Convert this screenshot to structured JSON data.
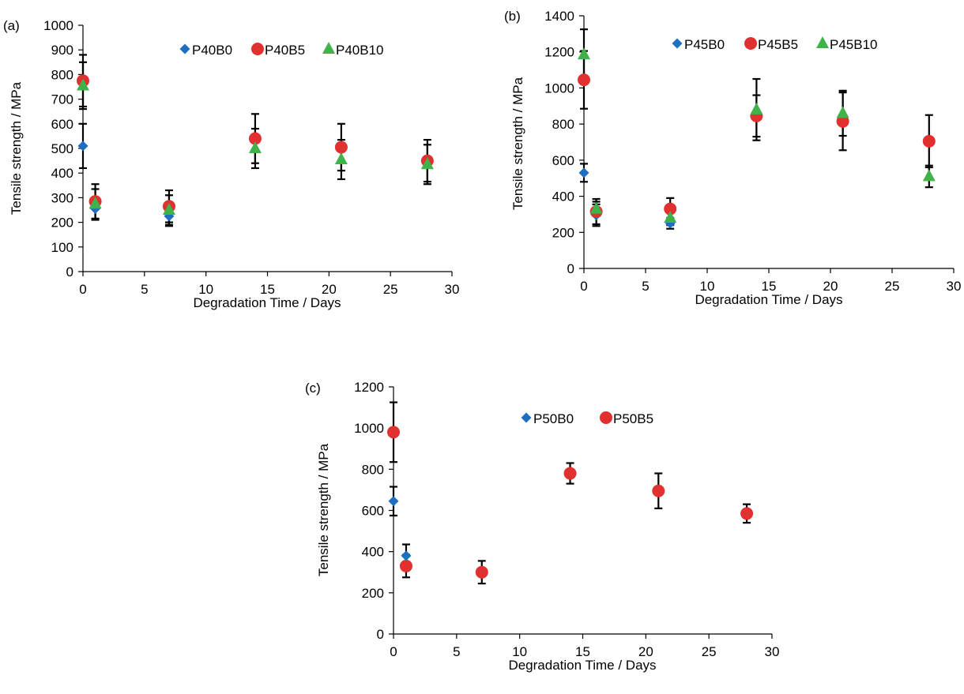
{
  "colors": {
    "diamond": "#1f6fc0",
    "circle": "#e0302f",
    "triangle": "#3fb24a",
    "axis": "#000000",
    "error_bar": "#000000"
  },
  "chart_data": [
    {
      "type": "scatter",
      "panel_label": "(a)",
      "xlabel": "Degradation Time / Days",
      "ylabel": "Tensile strength / MPa",
      "xlim": [
        0,
        30
      ],
      "ylim": [
        0,
        1000
      ],
      "x_ticks": [
        "0",
        "5",
        "10",
        "15",
        "20",
        "25",
        "30"
      ],
      "y_ticks": [
        "0",
        "100",
        "200",
        "300",
        "400",
        "500",
        "600",
        "700",
        "800",
        "900",
        "1000"
      ],
      "grid": false,
      "legend_position": "top-center",
      "series": [
        {
          "name": "P40B0",
          "marker": "diamond",
          "points": [
            {
              "x": 0,
              "y": 510,
              "err": 90
            },
            {
              "x": 1,
              "y": 255,
              "err": 45
            },
            {
              "x": 7,
              "y": 225,
              "err": 40
            }
          ]
        },
        {
          "name": "P40B5",
          "marker": "circle",
          "points": [
            {
              "x": 0,
              "y": 775,
              "err": 105
            },
            {
              "x": 1,
              "y": 285,
              "err": 70
            },
            {
              "x": 7,
              "y": 265,
              "err": 65
            },
            {
              "x": 14,
              "y": 540,
              "err": 100
            },
            {
              "x": 21,
              "y": 505,
              "err": 95
            },
            {
              "x": 28,
              "y": 450,
              "err": 85
            }
          ]
        },
        {
          "name": "P40B10",
          "marker": "triangle",
          "points": [
            {
              "x": 0,
              "y": 755,
              "err": 95
            },
            {
              "x": 1,
              "y": 275,
              "err": 60
            },
            {
              "x": 7,
              "y": 250,
              "err": 60
            },
            {
              "x": 14,
              "y": 500,
              "err": 80
            },
            {
              "x": 21,
              "y": 455,
              "err": 80
            },
            {
              "x": 28,
              "y": 435,
              "err": 80
            }
          ]
        }
      ]
    },
    {
      "type": "scatter",
      "panel_label": "(b)",
      "xlabel": "Degradation Time / Days",
      "ylabel": "Tensile strength / MPa",
      "xlim": [
        0,
        30
      ],
      "ylim": [
        0,
        1400
      ],
      "x_ticks": [
        "0",
        "5",
        "10",
        "15",
        "20",
        "25",
        "30"
      ],
      "y_ticks": [
        "0",
        "200",
        "400",
        "600",
        "800",
        "1000",
        "1200",
        "1400"
      ],
      "grid": false,
      "legend_position": "top-center",
      "series": [
        {
          "name": "P45B0",
          "marker": "diamond",
          "points": [
            {
              "x": 0,
              "y": 530,
              "err": 50
            },
            {
              "x": 1,
              "y": 295,
              "err": 60
            },
            {
              "x": 7,
              "y": 250,
              "err": 30
            }
          ]
        },
        {
          "name": "P45B5",
          "marker": "circle",
          "points": [
            {
              "x": 0,
              "y": 1045,
              "err": 160
            },
            {
              "x": 1,
              "y": 315,
              "err": 70
            },
            {
              "x": 7,
              "y": 330,
              "err": 60
            },
            {
              "x": 14,
              "y": 845,
              "err": 115
            },
            {
              "x": 21,
              "y": 815,
              "err": 160
            },
            {
              "x": 28,
              "y": 705,
              "err": 145
            }
          ]
        },
        {
          "name": "P45B10",
          "marker": "triangle",
          "points": [
            {
              "x": 0,
              "y": 1185,
              "err": 140
            },
            {
              "x": 1,
              "y": 330,
              "err": 40
            },
            {
              "x": 7,
              "y": 280,
              "err": 40
            },
            {
              "x": 14,
              "y": 880,
              "err": 170
            },
            {
              "x": 21,
              "y": 860,
              "err": 125
            },
            {
              "x": 28,
              "y": 510,
              "err": 60
            }
          ]
        }
      ]
    },
    {
      "type": "scatter",
      "panel_label": "(c)",
      "xlabel": "Degradation Time / Days",
      "ylabel": "Tensile strength / MPa",
      "xlim": [
        0,
        30
      ],
      "ylim": [
        0,
        1200
      ],
      "x_ticks": [
        "0",
        "5",
        "10",
        "15",
        "20",
        "25",
        "30"
      ],
      "y_ticks": [
        "0",
        "200",
        "400",
        "600",
        "800",
        "1000",
        "1200"
      ],
      "grid": false,
      "legend_position": "top-center",
      "series": [
        {
          "name": "P50B0",
          "marker": "diamond",
          "points": [
            {
              "x": 0,
              "y": 645,
              "err": 70
            },
            {
              "x": 1,
              "y": 380,
              "err": 55
            }
          ]
        },
        {
          "name": "P50B5",
          "marker": "circle",
          "points": [
            {
              "x": 0,
              "y": 980,
              "err": 145
            },
            {
              "x": 1,
              "y": 330,
              "err": 55
            },
            {
              "x": 7,
              "y": 300,
              "err": 55
            },
            {
              "x": 14,
              "y": 780,
              "err": 50
            },
            {
              "x": 21,
              "y": 695,
              "err": 85
            },
            {
              "x": 28,
              "y": 585,
              "err": 45
            }
          ]
        }
      ]
    }
  ]
}
